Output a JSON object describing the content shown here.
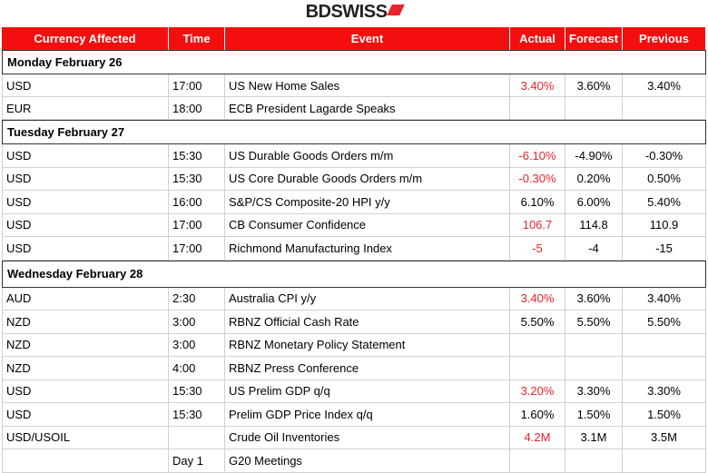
{
  "logo": "BDSWISS",
  "table": {
    "columns": [
      "Currency Affected",
      "Time",
      "Event",
      "Actual",
      "Forecast",
      "Previous"
    ],
    "sections": [
      {
        "title": "Monday February 26",
        "rows": [
          {
            "currency": "USD",
            "time": "17:00",
            "event": "US New Home Sales",
            "actual": "3.40%",
            "forecast": "3.60%",
            "previous": "3.40%",
            "actual_color": "#e8232b"
          },
          {
            "currency": "EUR",
            "time": "18:00",
            "event": "ECB President Lagarde Speaks"
          }
        ]
      },
      {
        "title": "Tuesday February 27",
        "rows": [
          {
            "currency": "USD",
            "time": "15:30",
            "event": "US Durable Goods Orders m/m",
            "actual": "-6.10%",
            "forecast": "-4.90%",
            "previous": "-0.30%",
            "actual_color": "#e8232b"
          },
          {
            "currency": "USD",
            "time": "15:30",
            "event": "US Core Durable Goods Orders m/m",
            "actual": "-0.30%",
            "forecast": "0.20%",
            "previous": "0.50%",
            "actual_color": "#e8232b"
          },
          {
            "currency": "USD",
            "time": "16:00",
            "event": "S&P/CS Composite-20 HPI y/y",
            "actual": "6.10%",
            "forecast": "6.00%",
            "previous": "5.40%",
            "actual_color": "#000000"
          },
          {
            "currency": "USD",
            "time": "17:00",
            "event": "CB Consumer Confidence",
            "actual": "106.7",
            "forecast": "114.8",
            "previous": "110.9",
            "actual_color": "#e8232b"
          },
          {
            "currency": "USD",
            "time": "17:00",
            "event": "Richmond Manufacturing Index",
            "actual": "-5",
            "forecast": "-4",
            "previous": "-15",
            "actual_color": "#e8232b"
          }
        ]
      },
      {
        "title": "Wednesday February 28",
        "rows": [
          {
            "currency": "AUD",
            "time": "2:30",
            "event": "Australia CPI y/y",
            "actual": "3.40%",
            "forecast": "3.60%",
            "previous": "3.40%",
            "actual_color": "#e8232b"
          },
          {
            "currency": "NZD",
            "time": "3:00",
            "event": "RBNZ Official Cash Rate",
            "actual": "5.50%",
            "forecast": "5.50%",
            "previous": "5.50%",
            "actual_color": "#000000"
          },
          {
            "currency": "NZD",
            "time": "3:00",
            "event": "RBNZ Monetary Policy Statement"
          },
          {
            "currency": "NZD",
            "time": "4:00",
            "event": "RBNZ Press Conference"
          },
          {
            "currency": "USD",
            "time": "15:30",
            "event": "US Prelim GDP q/q",
            "actual": "3.20%",
            "forecast": "3.30%",
            "previous": "3.30%",
            "actual_color": "#e8232b"
          },
          {
            "currency": "USD",
            "time": "15:30",
            "event": "Prelim GDP Price Index q/q",
            "actual": "1.60%",
            "forecast": "1.50%",
            "previous": "1.50%",
            "actual_color": "#000000"
          },
          {
            "currency": "USD/USOIL",
            "event": "Crude Oil Inventories",
            "actual": "4.2M",
            "forecast": "3.1M",
            "previous": "3.5M",
            "actual_color": "#e8232b"
          },
          {
            "time": "Day 1",
            "event": "G20 Meetings"
          }
        ]
      }
    ]
  }
}
